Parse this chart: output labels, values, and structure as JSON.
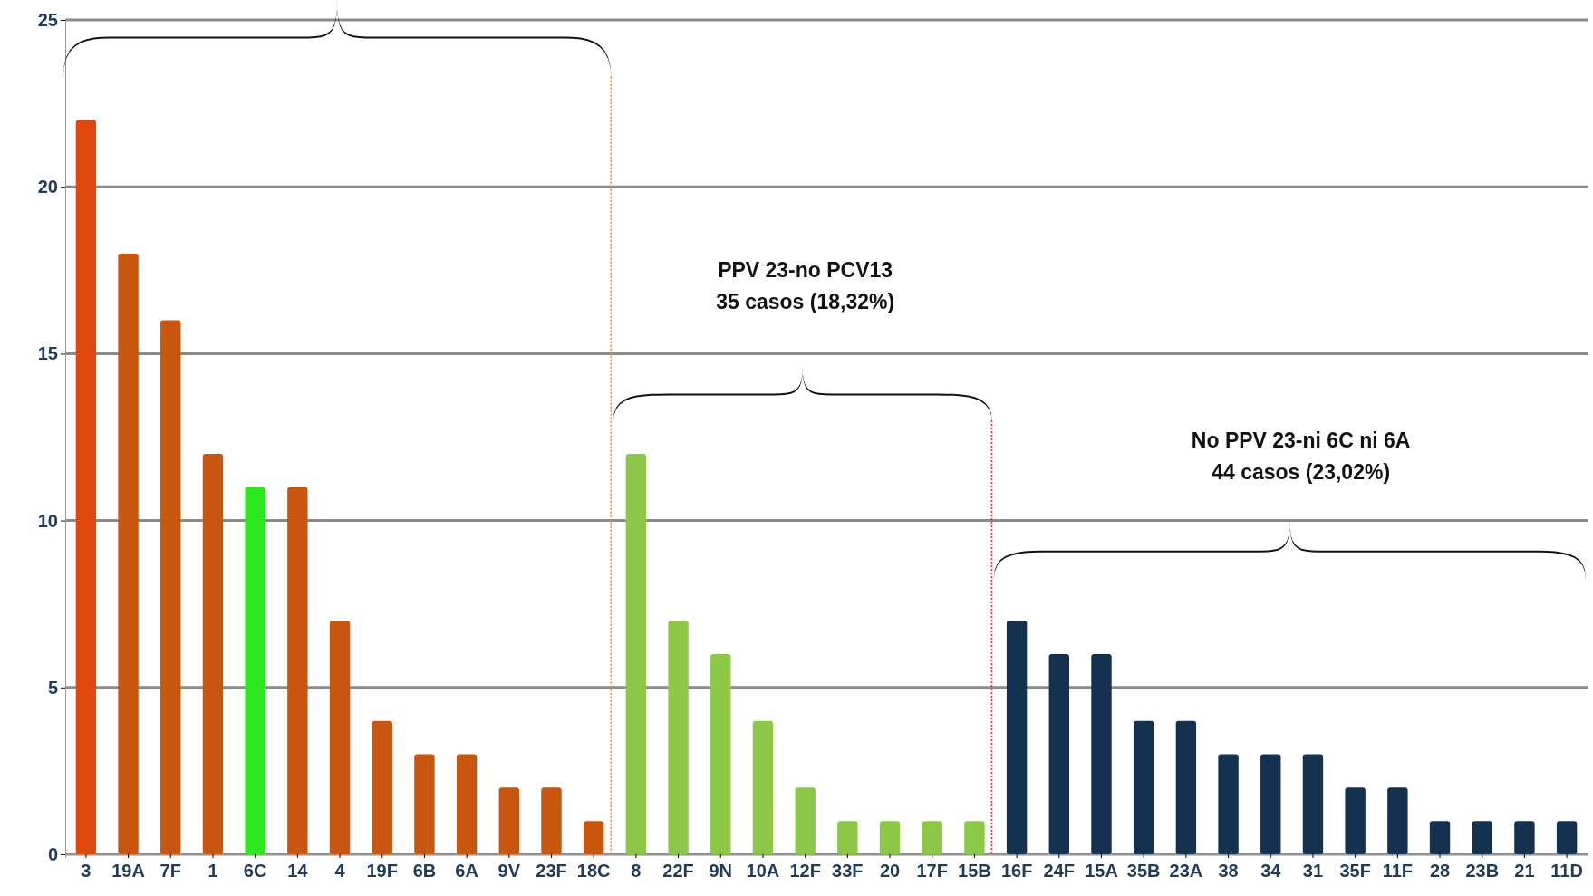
{
  "chart_data": {
    "type": "bar",
    "categories": [
      "3",
      "19A",
      "7F",
      "1",
      "6C",
      "14",
      "4",
      "19F",
      "6B",
      "6A",
      "9V",
      "23F",
      "18C",
      "8",
      "22F",
      "9N",
      "10A",
      "12F",
      "33F",
      "20",
      "17F",
      "15B",
      "16F",
      "24F",
      "15A",
      "35B",
      "23A",
      "38",
      "34",
      "31",
      "35F",
      "11F",
      "28",
      "23B",
      "21",
      "11D"
    ],
    "values": [
      22,
      18,
      16,
      12,
      11,
      11,
      7,
      4,
      3,
      3,
      2,
      2,
      1,
      12,
      7,
      6,
      4,
      2,
      1,
      1,
      1,
      1,
      7,
      6,
      6,
      4,
      4,
      3,
      3,
      3,
      2,
      2,
      1,
      1,
      1,
      1
    ],
    "colors": [
      "#e0480c",
      "#c8560e",
      "#c8560e",
      "#c8560e",
      "#2ee81e",
      "#c8560e",
      "#c8560e",
      "#c8560e",
      "#c8560e",
      "#c8560e",
      "#c8560e",
      "#c8560e",
      "#c8560e",
      "#8cc845",
      "#8cc845",
      "#8cc845",
      "#8cc845",
      "#8cc845",
      "#8cc845",
      "#8cc845",
      "#8cc845",
      "#8cc845",
      "#14324f",
      "#14324f",
      "#14324f",
      "#14324f",
      "#14324f",
      "#14324f",
      "#14324f",
      "#14324f",
      "#14324f",
      "#14324f",
      "#14324f",
      "#14324f",
      "#14324f",
      "#14324f"
    ],
    "ylim": [
      0,
      25
    ],
    "yticks": [
      0,
      5,
      10,
      15,
      20,
      25
    ],
    "grid": "y",
    "annotations": [
      "PPV 23-no PCV13",
      "35 casos (18,32%)",
      "No PPV 23-ni 6C ni 6A",
      "44 casos (23,02%)"
    ]
  }
}
